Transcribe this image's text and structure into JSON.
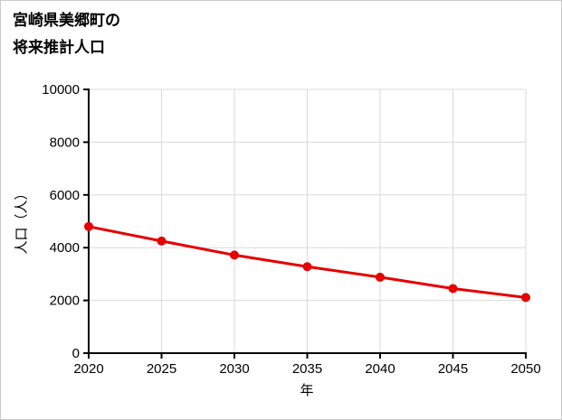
{
  "title": {
    "line1": "宮崎県美郷町の",
    "line2": "将来推計人口"
  },
  "chart_data": {
    "type": "line",
    "title": "宮崎県美郷町の将来推計人口",
    "x": [
      2020,
      2025,
      2030,
      2035,
      2040,
      2045,
      2050
    ],
    "series": [
      {
        "name": "将来推計人口",
        "values": [
          4800,
          4250,
          3720,
          3280,
          2880,
          2450,
          2110
        ]
      }
    ],
    "xlabel": "年",
    "ylabel": "人口（人）",
    "xlim": [
      2020,
      2050
    ],
    "ylim": [
      0,
      10000
    ],
    "xticks": [
      2020,
      2025,
      2030,
      2035,
      2040,
      2045,
      2050
    ],
    "yticks": [
      0,
      2000,
      4000,
      6000,
      8000,
      10000
    ],
    "grid": true,
    "legend_position": "none",
    "line_color": "#e60000",
    "marker_color": "#e60000",
    "axis_color": "#000000",
    "grid_color": "#d9d9d9"
  }
}
